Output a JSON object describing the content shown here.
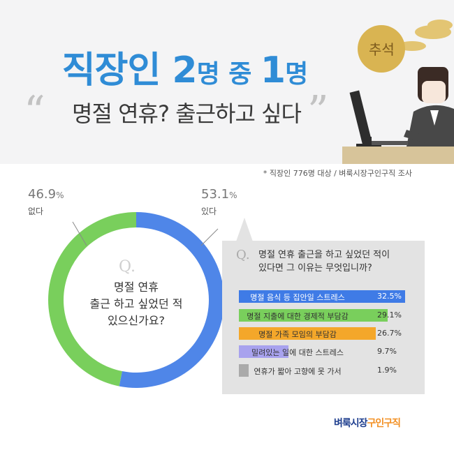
{
  "header": {
    "title_part1": "직장인 2",
    "title_part2": "명 중 ",
    "title_part3": "1",
    "title_part4": "명",
    "subtitle": "명절 연휴? 출근하고 싶다",
    "badge": "추석"
  },
  "source_note": "* 직장인 776명 대상 / 벼룩시장구인구직 조사",
  "donut": {
    "question_mark": "Q.",
    "question": [
      "명절 연휴",
      "출근 하고 싶었던 적",
      "있으신가요?"
    ],
    "yes_value": "53.1",
    "yes_label": "있다",
    "no_value": "46.9",
    "no_label": "없다",
    "unit": "%"
  },
  "panel": {
    "question_mark": "Q.",
    "question": [
      "명절 연휴 출근을 하고 싶었던 적이",
      "있다면 그 이유는 무엇입니까?"
    ]
  },
  "chart_data": [
    {
      "type": "pie",
      "labels": [
        "있다",
        "없다"
      ],
      "values": [
        53.1,
        46.9
      ],
      "colors": [
        "#4f86e8",
        "#79cf5c"
      ]
    },
    {
      "type": "bar",
      "categories": [
        "명절 음식 등 집안일 스트레스",
        "명절 지출에 대한 경제적 부담감",
        "명절 가족 모임의 부담감",
        "밀려있는 일에 대한 스트레스",
        "연휴가 짧아 고향에 못 가서"
      ],
      "values": [
        32.5,
        29.1,
        26.7,
        9.7,
        1.9
      ],
      "value_labels": [
        "32.5%",
        "29.1%",
        "26.7%",
        "9.7%",
        "1.9%"
      ],
      "colors": [
        "#3f7be6",
        "#79cf5c",
        "#f4a72a",
        "#a8a2ee",
        "#aaaaaa"
      ],
      "xlim": [
        0,
        32.5
      ]
    }
  ],
  "logo": {
    "part1": "벼룩시장",
    "part2": "구인구직"
  }
}
